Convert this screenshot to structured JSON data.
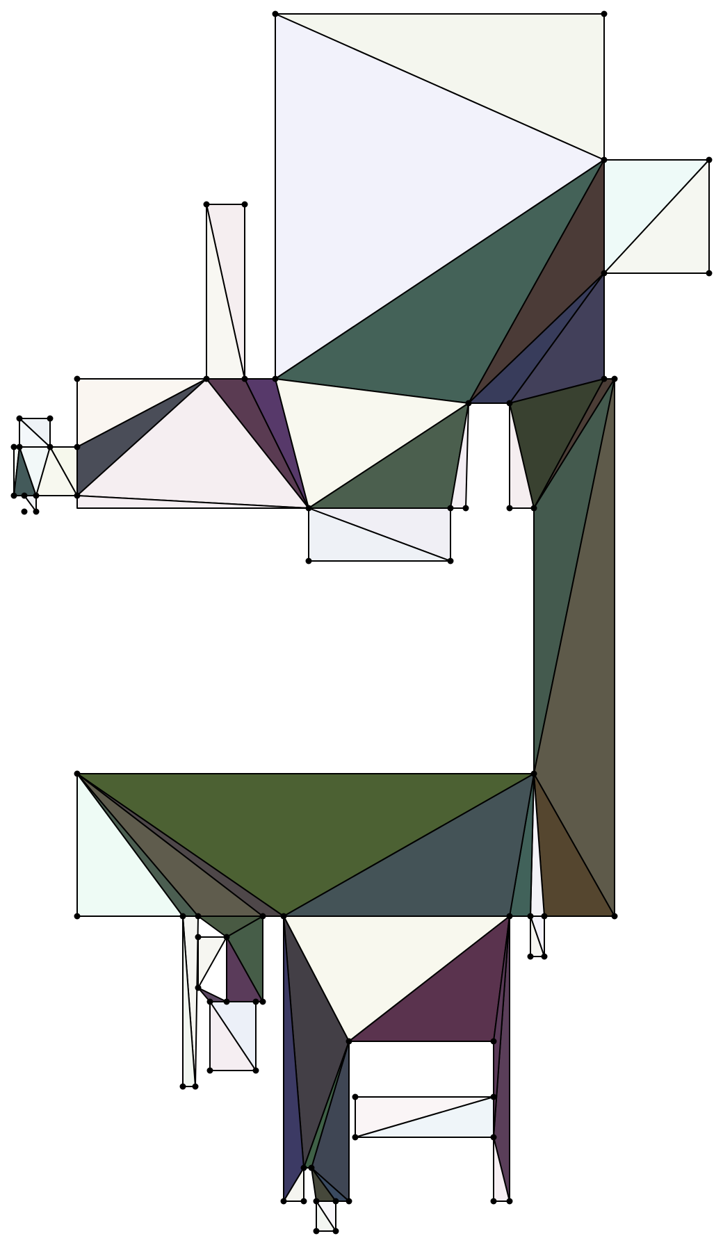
{
  "diagram": {
    "kind": "polygon-triangulation",
    "stroke_color": "#000000",
    "vertex_color": "#000000",
    "background": "#ffffff",
    "note_colors": [
      "#f2f2fb",
      "#f4f6ee",
      "#446258",
      "#4b3b37",
      "#42405a",
      "#383c5b",
      "#eefaf8",
      "#f5f7f1"
    ]
  }
}
